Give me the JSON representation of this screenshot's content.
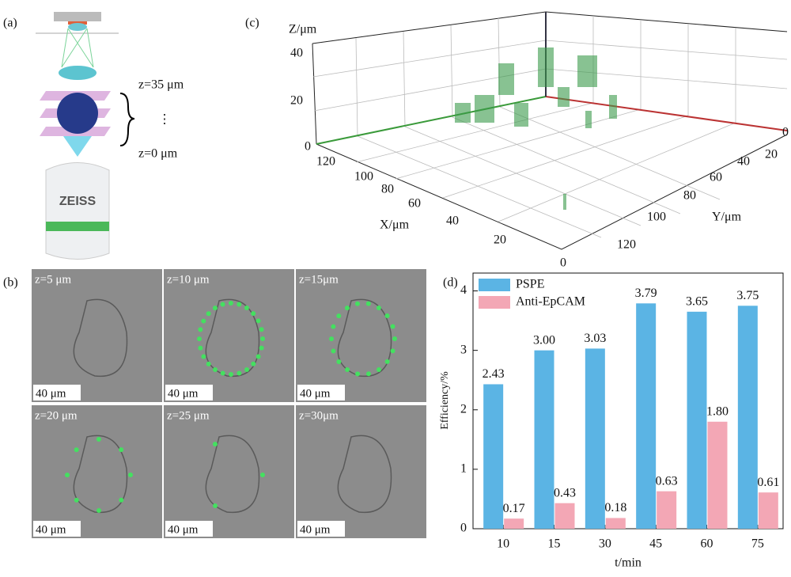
{
  "panel_a": {
    "label": "(a)",
    "z_top": "z=35 μm",
    "dots": "⋮",
    "z_bottom": "z=0 μm",
    "brand": "ZEISS"
  },
  "panel_b": {
    "label": "(b)",
    "images": [
      {
        "label": "z=5 μm",
        "scale": "40 μm"
      },
      {
        "label": "z=10 μm",
        "scale": "40 μm"
      },
      {
        "label": "z=15μm",
        "scale": "40 μm"
      },
      {
        "label": "z=20 μm",
        "scale": "40 μm"
      },
      {
        "label": "z=25 μm",
        "scale": "40 μm"
      },
      {
        "label": "z=30μm",
        "scale": "40 μm"
      }
    ]
  },
  "panel_c": {
    "label": "(c)",
    "z_label": "Z/μm",
    "x_label": "X/μm",
    "y_label": "Y/μm",
    "z_ticks": [
      40,
      20,
      0
    ],
    "x_ticks": [
      120,
      100,
      80,
      60,
      40,
      20,
      0
    ],
    "y_ticks": [
      0,
      20,
      40,
      60,
      80,
      100,
      120
    ]
  },
  "chart_data": {
    "type": "bar",
    "label": "(d)",
    "x_label": "t/min",
    "y_label": "Efficiency/%",
    "categories": [
      "10",
      "15",
      "30",
      "45",
      "60",
      "75"
    ],
    "series": [
      {
        "name": "PSPE",
        "color": "#5bb4e4",
        "values": [
          2.43,
          3.0,
          3.03,
          3.79,
          3.65,
          3.75
        ],
        "value_labels": [
          "2.43",
          "3.00",
          "3.03",
          "3.79",
          "3.65",
          "3.75"
        ]
      },
      {
        "name": "Anti-EpCAM",
        "color": "#f3a7b5",
        "values": [
          0.17,
          0.43,
          0.18,
          0.63,
          1.8,
          0.61
        ],
        "value_labels": [
          "0.17",
          "0.43",
          "0.18",
          "0.63",
          "1.80",
          "0.61"
        ]
      }
    ],
    "ylim": [
      0,
      4.3
    ],
    "yticks": [
      0,
      1,
      2,
      3,
      4
    ],
    "legend": "top-left"
  }
}
